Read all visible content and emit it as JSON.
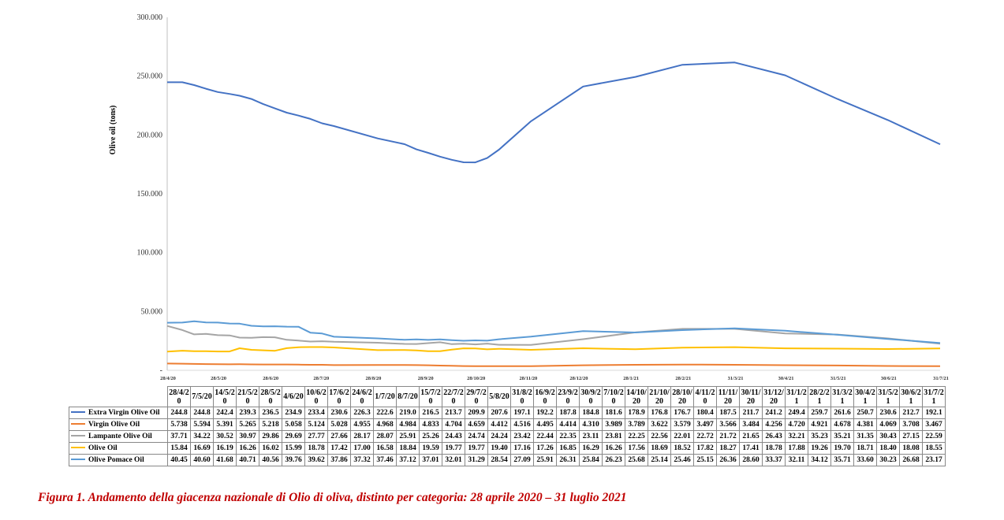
{
  "caption": "Figura 1. Andamento della giacenza nazionale di Olio di oliva, distinto per categoria: 28 aprile 2020 – 31 luglio 2021",
  "chart_data": {
    "type": "line",
    "ylabel": "Olive oil (tons)",
    "xlabel": "",
    "ylim": [
      0,
      300000
    ],
    "yticks": [
      "-",
      "50.000",
      "100.000",
      "150.000",
      "200.000",
      "250.000",
      "300.000"
    ],
    "grid": false,
    "x_tick_labels": [
      "28/4/20",
      "28/5/20",
      "28/6/20",
      "28/7/20",
      "28/8/20",
      "28/9/20",
      "28/10/20",
      "28/11/20",
      "28/12/20",
      "28/1/21",
      "28/2/21",
      "31/3/21",
      "30/4/21",
      "31/5/21",
      "30/6/21",
      "31/7/21"
    ],
    "table_headers": [
      "28/4/20",
      "7/5/20",
      "14/5/20",
      "21/5/20",
      "28/5/20",
      "4/6/20",
      "10/6/20",
      "17/6/20",
      "24/6/20",
      "1/7/20",
      "8/7/20",
      "15/7/20",
      "22/7/20",
      "29/7/20",
      "5/8/20",
      "31/8/20",
      "16/9/20",
      "23/9/20",
      "30/9/20",
      "7/10/20",
      "14/10/20",
      "21/10/20",
      "28/10/20",
      "4/11/20",
      "11/11/20",
      "30/11/20",
      "31/12/20",
      "31/1/21",
      "28/2/21",
      "31/3/21",
      "30/4/21",
      "31/5/21",
      "30/6/21",
      "31/7/21"
    ],
    "series": [
      {
        "name": "Extra Virgin Olive Oil",
        "color": "#4472c4",
        "values": [
          "244.8",
          "244.8",
          "242.4",
          "239.3",
          "236.5",
          "234.9",
          "233.4",
          "230.6",
          "226.3",
          "222.6",
          "219.0",
          "216.5",
          "213.7",
          "209.9",
          "207.6",
          "197.1",
          "192.2",
          "187.8",
          "184.8",
          "181.6",
          "178.9",
          "176.8",
          "176.7",
          "180.4",
          "187.5",
          "211.7",
          "241.2",
          "249.4",
          "259.7",
          "261.6",
          "250.7",
          "230.6",
          "212.7",
          "192.1"
        ]
      },
      {
        "name": "Virgin Olive Oil",
        "color": "#ed7d31",
        "values": [
          "5.738",
          "5.594",
          "5.391",
          "5.265",
          "5.218",
          "5.058",
          "5.124",
          "5.028",
          "4.955",
          "4.968",
          "4.984",
          "4.833",
          "4.704",
          "4.659",
          "4.412",
          "4.516",
          "4.495",
          "4.414",
          "4.310",
          "3.989",
          "3.789",
          "3.622",
          "3.579",
          "3.497",
          "3.566",
          "3.484",
          "4.256",
          "4.720",
          "4.921",
          "4.678",
          "4.381",
          "4.069",
          "3.708",
          "3.467"
        ]
      },
      {
        "name": "Lampante Olive Oil",
        "color": "#a5a5a5",
        "values": [
          "37.71",
          "34.22",
          "30.52",
          "30.97",
          "29.86",
          "29.69",
          "27.77",
          "27.66",
          "28.17",
          "28.07",
          "25.91",
          "25.26",
          "24.43",
          "24.74",
          "24.24",
          "23.42",
          "22.44",
          "22.35",
          "23.11",
          "23.81",
          "22.25",
          "22.56",
          "22.01",
          "22.72",
          "21.72",
          "21.65",
          "26.43",
          "32.21",
          "35.23",
          "35.21",
          "31.35",
          "30.43",
          "27.15",
          "22.59"
        ]
      },
      {
        "name": "Olive Oil",
        "color": "#ffc000",
        "values": [
          "15.84",
          "16.69",
          "16.19",
          "16.26",
          "16.02",
          "15.99",
          "18.78",
          "17.42",
          "17.00",
          "16.58",
          "18.84",
          "19.59",
          "19.77",
          "19.77",
          "19.40",
          "17.16",
          "17.26",
          "16.85",
          "16.29",
          "16.26",
          "17.56",
          "18.69",
          "18.52",
          "17.82",
          "18.27",
          "17.41",
          "18.78",
          "17.88",
          "19.26",
          "19.70",
          "18.71",
          "18.40",
          "18.08",
          "18.55"
        ]
      },
      {
        "name": "Olive Pomace Oil",
        "color": "#5b9bd5",
        "values": [
          "40.45",
          "40.60",
          "41.68",
          "40.71",
          "40.56",
          "39.76",
          "39.62",
          "37.86",
          "37.32",
          "37.46",
          "37.12",
          "37.01",
          "32.01",
          "31.29",
          "28.54",
          "27.09",
          "25.91",
          "26.31",
          "25.84",
          "26.23",
          "25.68",
          "25.14",
          "25.46",
          "25.15",
          "26.36",
          "28.60",
          "33.37",
          "32.11",
          "34.12",
          "35.71",
          "33.60",
          "30.23",
          "26.68",
          "23.17"
        ]
      }
    ]
  }
}
